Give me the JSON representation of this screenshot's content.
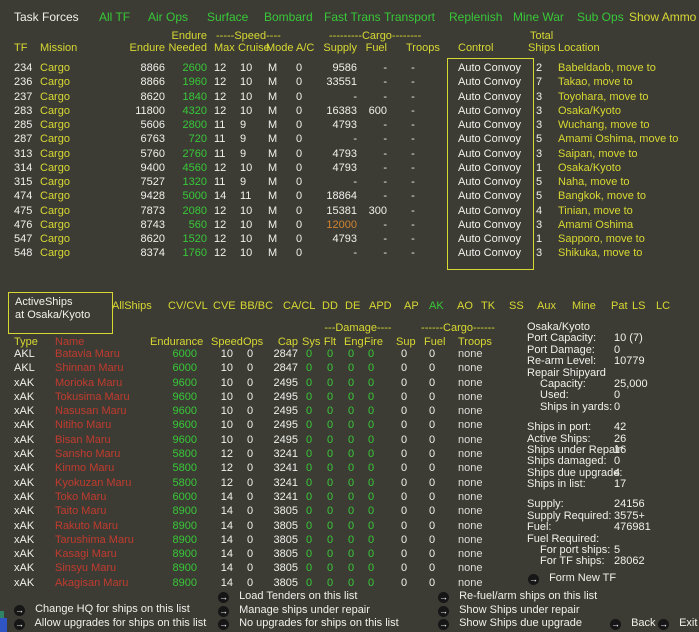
{
  "colors": {
    "background": "#3c3c35",
    "yellow": "#d8d832",
    "green": "#38c838",
    "white": "#f1f1ec",
    "red": "#c13b2e",
    "orange": "#d08432"
  },
  "header": {
    "title": "Task Forces",
    "menu": [
      {
        "label": "All TF"
      },
      {
        "label": "Air Ops"
      },
      {
        "label": "Surface"
      },
      {
        "label": "Bombard"
      },
      {
        "label": "Fast Trans"
      },
      {
        "label": "Transport"
      },
      {
        "label": "Replenish"
      },
      {
        "label": "Mine War"
      },
      {
        "label": "Sub Ops"
      },
      {
        "label": "Show Ammo",
        "highlight": true
      }
    ]
  },
  "tf_table": {
    "group_headers": {
      "endure": "Endure",
      "speed": "-----Speed----",
      "cargo": "---------Cargo--------",
      "total": "Total"
    },
    "col_headers": {
      "tf": "TF",
      "mission": "Mission",
      "endure": "Endure",
      "needed": "Needed",
      "max": "Max",
      "cruise": "Cruise",
      "mode": "Mode",
      "ac": "A/C",
      "supply": "Supply",
      "fuel": "Fuel",
      "troops": "Troops",
      "control": "Control",
      "ships": "Ships",
      "location": "Location"
    },
    "rows": [
      {
        "tf": "234",
        "mission": "Cargo",
        "endure": "8866",
        "needed": "2600",
        "max": "12",
        "cruise": "10",
        "mode": "M",
        "ac": "0",
        "supply": "9586",
        "fuel": "-",
        "troops": "-",
        "control": "Auto Convoy",
        "ships": "2",
        "location": "Babeldaob, move to"
      },
      {
        "tf": "236",
        "mission": "Cargo",
        "endure": "8866",
        "needed": "1960",
        "max": "12",
        "cruise": "10",
        "mode": "M",
        "ac": "0",
        "supply": "33551",
        "fuel": "-",
        "troops": "-",
        "control": "Auto Convoy",
        "ships": "7",
        "location": "Takao, move to"
      },
      {
        "tf": "237",
        "mission": "Cargo",
        "endure": "8620",
        "needed": "1840",
        "max": "12",
        "cruise": "10",
        "mode": "M",
        "ac": "0",
        "supply": "-",
        "fuel": "-",
        "troops": "-",
        "control": "Auto Convoy",
        "ships": "3",
        "location": "Toyohara, move to"
      },
      {
        "tf": "283",
        "mission": "Cargo",
        "endure": "11800",
        "needed": "4320",
        "max": "12",
        "cruise": "10",
        "mode": "M",
        "ac": "0",
        "supply": "16383",
        "fuel": "600",
        "troops": "-",
        "control": "Auto Convoy",
        "ships": "3",
        "location": "Osaka/Kyoto"
      },
      {
        "tf": "285",
        "mission": "Cargo",
        "endure": "5606",
        "needed": "2800",
        "max": "11",
        "cruise": "9",
        "mode": "M",
        "ac": "0",
        "supply": "4793",
        "fuel": "-",
        "troops": "-",
        "control": "Auto Convoy",
        "ships": "3",
        "location": "Wuchang, move to"
      },
      {
        "tf": "287",
        "mission": "Cargo",
        "endure": "6763",
        "needed": "720",
        "max": "11",
        "cruise": "9",
        "mode": "M",
        "ac": "0",
        "supply": "-",
        "fuel": "-",
        "troops": "-",
        "control": "Auto Convoy",
        "ships": "5",
        "location": "Amami Oshima, move to"
      },
      {
        "tf": "313",
        "mission": "Cargo",
        "endure": "5760",
        "needed": "2760",
        "max": "11",
        "cruise": "9",
        "mode": "M",
        "ac": "0",
        "supply": "4793",
        "fuel": "-",
        "troops": "-",
        "control": "Auto Convoy",
        "ships": "3",
        "location": "Saipan, move to"
      },
      {
        "tf": "314",
        "mission": "Cargo",
        "endure": "9400",
        "needed": "4560",
        "max": "12",
        "cruise": "10",
        "mode": "M",
        "ac": "0",
        "supply": "4793",
        "fuel": "-",
        "troops": "-",
        "control": "Auto Convoy",
        "ships": "1",
        "location": "Osaka/Kyoto"
      },
      {
        "tf": "315",
        "mission": "Cargo",
        "endure": "7527",
        "needed": "1320",
        "max": "11",
        "cruise": "9",
        "mode": "M",
        "ac": "0",
        "supply": "-",
        "fuel": "-",
        "troops": "-",
        "control": "Auto Convoy",
        "ships": "5",
        "location": "Naha, move to"
      },
      {
        "tf": "474",
        "mission": "Cargo",
        "endure": "9428",
        "needed": "5000",
        "max": "14",
        "cruise": "11",
        "mode": "M",
        "ac": "0",
        "supply": "18864",
        "fuel": "-",
        "troops": "-",
        "control": "Auto Convoy",
        "ships": "5",
        "location": "Bangkok, move to"
      },
      {
        "tf": "475",
        "mission": "Cargo",
        "endure": "7873",
        "needed": "2080",
        "max": "12",
        "cruise": "10",
        "mode": "M",
        "ac": "0",
        "supply": "15381",
        "fuel": "300",
        "troops": "-",
        "control": "Auto Convoy",
        "ships": "4",
        "location": "Tinian, move to"
      },
      {
        "tf": "476",
        "mission": "Cargo",
        "endure": "8743",
        "needed": "560",
        "max": "12",
        "cruise": "10",
        "mode": "M",
        "ac": "0",
        "supply": "12000",
        "supply_warn": true,
        "fuel": "-",
        "troops": "-",
        "control": "Auto Convoy",
        "ships": "3",
        "location": "Amami Oshima"
      },
      {
        "tf": "547",
        "mission": "Cargo",
        "endure": "8620",
        "needed": "1520",
        "max": "12",
        "cruise": "10",
        "mode": "M",
        "ac": "0",
        "supply": "4793",
        "fuel": "-",
        "troops": "-",
        "control": "Auto Convoy",
        "ships": "1",
        "location": "Sapporo, move to"
      },
      {
        "tf": "548",
        "mission": "Cargo",
        "endure": "8374",
        "needed": "1760",
        "max": "12",
        "cruise": "10",
        "mode": "M",
        "ac": "0",
        "supply": "-",
        "fuel": "-",
        "troops": "-",
        "control": "Auto Convoy",
        "ships": "3",
        "location": "Shikuka, move to"
      }
    ]
  },
  "ship_section": {
    "label_line1": "ActiveShips",
    "label_line2": "at Osaka/Kyoto",
    "tabs": [
      {
        "label": "AllShips"
      },
      {
        "label": "CV/CVL"
      },
      {
        "label": "CVE"
      },
      {
        "label": "BB/BC"
      },
      {
        "label": "CA/CL"
      },
      {
        "label": "DD"
      },
      {
        "label": "DE"
      },
      {
        "label": "APD"
      },
      {
        "label": "AP"
      },
      {
        "label": "AK",
        "active": true
      },
      {
        "label": "AO"
      },
      {
        "label": "TK"
      },
      {
        "label": "SS"
      },
      {
        "label": "Aux"
      },
      {
        "label": "Mine"
      },
      {
        "label": "Pat"
      },
      {
        "label": "LS"
      },
      {
        "label": "LC"
      }
    ],
    "group_headers": {
      "damage": "---Damage----",
      "cargo": "------Cargo------"
    },
    "col_headers": {
      "type": "Type",
      "name": "Name",
      "endurance": "Endurance",
      "speed": "Speed",
      "ops": "Ops",
      "cap": "Cap",
      "sys": "Sys",
      "flt": "Flt",
      "eng": "Eng",
      "fire": "Fire",
      "sup": "Sup",
      "fuel": "Fuel",
      "troops": "Troops"
    },
    "rows": [
      {
        "type": "AKL",
        "name": "Batavia Maru",
        "endurance": "6000",
        "speed": "10",
        "ops": "0",
        "cap": "2847",
        "sys": "0",
        "flt": "0",
        "eng": "0",
        "fire": "0",
        "sup": "0",
        "fuel": "0",
        "troops": "none"
      },
      {
        "type": "AKL",
        "name": "Shinnan Maru",
        "endurance": "6000",
        "speed": "10",
        "ops": "0",
        "cap": "2847",
        "sys": "0",
        "flt": "0",
        "eng": "0",
        "fire": "0",
        "sup": "0",
        "fuel": "0",
        "troops": "none"
      },
      {
        "type": "xAK",
        "name": "Morioka Maru",
        "endurance": "9600",
        "speed": "10",
        "ops": "0",
        "cap": "2495",
        "sys": "0",
        "flt": "0",
        "eng": "0",
        "fire": "0",
        "sup": "0",
        "fuel": "0",
        "troops": "none"
      },
      {
        "type": "xAK",
        "name": "Tokusima Maru",
        "endurance": "9600",
        "speed": "10",
        "ops": "0",
        "cap": "2495",
        "sys": "0",
        "flt": "0",
        "eng": "0",
        "fire": "0",
        "sup": "0",
        "fuel": "0",
        "troops": "none"
      },
      {
        "type": "xAK",
        "name": "Nasusan Maru",
        "endurance": "9600",
        "speed": "10",
        "ops": "0",
        "cap": "2495",
        "sys": "0",
        "flt": "0",
        "eng": "0",
        "fire": "0",
        "sup": "0",
        "fuel": "0",
        "troops": "none"
      },
      {
        "type": "xAK",
        "name": "Nitiho Maru",
        "endurance": "9600",
        "speed": "10",
        "ops": "0",
        "cap": "2495",
        "sys": "0",
        "flt": "0",
        "eng": "0",
        "fire": "0",
        "sup": "0",
        "fuel": "0",
        "troops": "none"
      },
      {
        "type": "xAK",
        "name": "Bisan Maru",
        "endurance": "9600",
        "speed": "10",
        "ops": "0",
        "cap": "2495",
        "sys": "0",
        "flt": "0",
        "eng": "0",
        "fire": "0",
        "sup": "0",
        "fuel": "0",
        "troops": "none"
      },
      {
        "type": "xAK",
        "name": "Sansho Maru",
        "endurance": "5800",
        "speed": "12",
        "ops": "0",
        "cap": "3241",
        "sys": "0",
        "flt": "0",
        "eng": "0",
        "fire": "0",
        "sup": "0",
        "fuel": "0",
        "troops": "none"
      },
      {
        "type": "xAK",
        "name": "Kinmo Maru",
        "endurance": "5800",
        "speed": "12",
        "ops": "0",
        "cap": "3241",
        "sys": "0",
        "flt": "0",
        "eng": "0",
        "fire": "0",
        "sup": "0",
        "fuel": "0",
        "troops": "none"
      },
      {
        "type": "xAK",
        "name": "Kyokuzan Maru",
        "endurance": "5800",
        "speed": "12",
        "ops": "0",
        "cap": "3241",
        "sys": "0",
        "flt": "0",
        "eng": "0",
        "fire": "0",
        "sup": "0",
        "fuel": "0",
        "troops": "none"
      },
      {
        "type": "xAK",
        "name": "Toko Maru",
        "endurance": "6000",
        "speed": "14",
        "ops": "0",
        "cap": "3241",
        "sys": "0",
        "flt": "0",
        "eng": "0",
        "fire": "0",
        "sup": "0",
        "fuel": "0",
        "troops": "none"
      },
      {
        "type": "xAK",
        "name": "Taito Maru",
        "endurance": "8900",
        "speed": "14",
        "ops": "0",
        "cap": "3805",
        "sys": "0",
        "flt": "0",
        "eng": "0",
        "fire": "0",
        "sup": "0",
        "fuel": "0",
        "troops": "none"
      },
      {
        "type": "xAK",
        "name": "Rakuto Maru",
        "endurance": "8900",
        "speed": "14",
        "ops": "0",
        "cap": "3805",
        "sys": "0",
        "flt": "0",
        "eng": "0",
        "fire": "0",
        "sup": "0",
        "fuel": "0",
        "troops": "none"
      },
      {
        "type": "xAK",
        "name": "Tarushima Maru",
        "endurance": "8900",
        "speed": "14",
        "ops": "0",
        "cap": "3805",
        "sys": "0",
        "flt": "0",
        "eng": "0",
        "fire": "0",
        "sup": "0",
        "fuel": "0",
        "troops": "none"
      },
      {
        "type": "xAK",
        "name": "Kasagi Maru",
        "endurance": "8900",
        "speed": "14",
        "ops": "0",
        "cap": "3805",
        "sys": "0",
        "flt": "0",
        "eng": "0",
        "fire": "0",
        "sup": "0",
        "fuel": "0",
        "troops": "none"
      },
      {
        "type": "xAK",
        "name": "Sinsyu Maru",
        "endurance": "8900",
        "speed": "14",
        "ops": "0",
        "cap": "3805",
        "sys": "0",
        "flt": "0",
        "eng": "0",
        "fire": "0",
        "sup": "0",
        "fuel": "0",
        "troops": "none"
      },
      {
        "type": "xAK",
        "name": "Akagisan Maru",
        "endurance": "8900",
        "speed": "14",
        "ops": "0",
        "cap": "3805",
        "sys": "0",
        "flt": "0",
        "eng": "0",
        "fire": "0",
        "sup": "0",
        "fuel": "0",
        "troops": "none"
      }
    ]
  },
  "port_panel": {
    "title": "Osaka/Kyoto",
    "lines": [
      {
        "label": "Port Capacity:",
        "value": "10 (7)"
      },
      {
        "label": "Port Damage:",
        "value": "0"
      },
      {
        "label": "Re-arm Level:",
        "value": "10779"
      },
      {
        "label": "Repair Shipyard",
        "value": ""
      },
      {
        "label": "Capacity:",
        "value": "25,000",
        "indent": true
      },
      {
        "label": "Used:",
        "value": "0",
        "indent": true
      },
      {
        "label": "Ships in yards:",
        "value": "0",
        "indent": true
      },
      {
        "label": "Ships in port:",
        "value": "42",
        "gap": true
      },
      {
        "label": "Active Ships:",
        "value": "26"
      },
      {
        "label": "Ships under Repair:",
        "value": "16"
      },
      {
        "label": "Ships damaged:",
        "value": "0"
      },
      {
        "label": "Ships due upgrade:",
        "value": "4"
      },
      {
        "label": "Ships in list:",
        "value": "17"
      },
      {
        "label": "Supply:",
        "value": "24156",
        "gap": true
      },
      {
        "label": "Supply Required:",
        "value": "3575+"
      },
      {
        "label": "Fuel:",
        "value": "476981"
      },
      {
        "label": "Fuel Required:",
        "value": ""
      },
      {
        "label": "For port ships:",
        "value": "5",
        "indent": true
      },
      {
        "label": "For TF ships:",
        "value": "28062",
        "indent": true
      }
    ],
    "form_new_tf": "Form New TF"
  },
  "bottom_menu": {
    "col1": [
      "Change HQ for ships on this list",
      "Allow upgrades for ships on this list"
    ],
    "col2": [
      "Load Tenders on this list",
      "Manage ships under repair",
      "No upgrades for ships on this list"
    ],
    "col3": [
      "Re-fuel/arm ships on this list",
      "Show Ships under repair",
      "Show Ships due upgrade"
    ],
    "back": "Back",
    "exit": "Exit"
  }
}
